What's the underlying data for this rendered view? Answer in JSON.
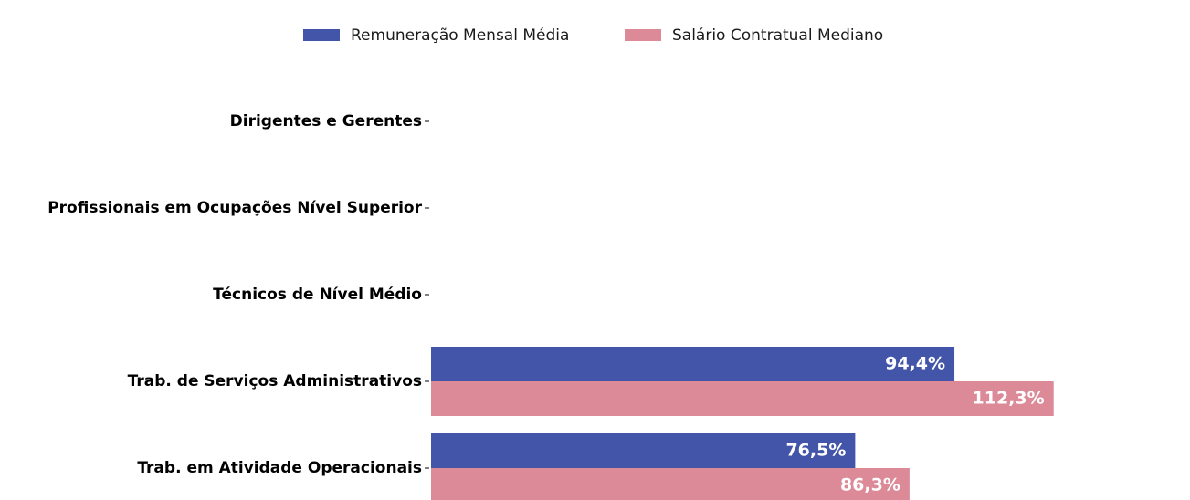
{
  "chart_data": {
    "type": "barh",
    "categories": [
      "Dirigentes e Gerentes",
      "Profissionais em Ocupações Nível Superior",
      "Técnicos de Nível Médio",
      "Trab. de Serviços Administrativos",
      "Trab. em Atividade Operacionais"
    ],
    "series": [
      {
        "name": "Remuneração Mensal Média",
        "color": "#4355a8",
        "values": [
          null,
          null,
          null,
          94.4,
          76.5
        ],
        "value_labels": [
          null,
          null,
          null,
          "94,4%",
          "76,5%"
        ]
      },
      {
        "name": "Salário Contratual Mediano",
        "color": "#dc8a98",
        "values": [
          null,
          null,
          null,
          112.3,
          86.3
        ],
        "value_labels": [
          null,
          null,
          null,
          "112,3%",
          "86,3%"
        ]
      }
    ],
    "xlim": [
      0,
      135
    ],
    "legend": "top"
  }
}
